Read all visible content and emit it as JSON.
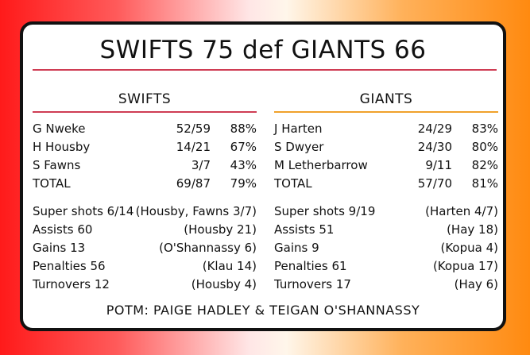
{
  "title": "SWIFTS 75 def GIANTS 66",
  "teams": [
    {
      "name": "SWIFTS",
      "players": [
        {
          "name": "G Nweke",
          "ratio": "52/59",
          "pct": "88%"
        },
        {
          "name": "H Housby",
          "ratio": "14/21",
          "pct": "67%"
        },
        {
          "name": "S Fawns",
          "ratio": "3/7",
          "pct": "43%"
        },
        {
          "name": "TOTAL",
          "ratio": "69/87",
          "pct": "79%"
        }
      ],
      "stats": [
        {
          "label": "Super shots 6/14",
          "detail": "(Housby, Fawns 3/7)"
        },
        {
          "label": "Assists 60",
          "detail": "(Housby 21)"
        },
        {
          "label": "Gains 13",
          "detail": "(O'Shannassy 6)"
        },
        {
          "label": "Penalties 56",
          "detail": "(Klau 14)"
        },
        {
          "label": "Turnovers 12",
          "detail": "(Housby 4)"
        }
      ]
    },
    {
      "name": "GIANTS",
      "players": [
        {
          "name": "J Harten",
          "ratio": "24/29",
          "pct": "83%"
        },
        {
          "name": "S Dwyer",
          "ratio": "24/30",
          "pct": "80%"
        },
        {
          "name": "M Letherbarrow",
          "ratio": "9/11",
          "pct": "82%"
        },
        {
          "name": "TOTAL",
          "ratio": "57/70",
          "pct": "81%"
        }
      ],
      "stats": [
        {
          "label": "Super shots 9/19",
          "detail": "(Harten 4/7)"
        },
        {
          "label": "Assists 51",
          "detail": "(Hay 18)"
        },
        {
          "label": "Gains 9",
          "detail": "(Kopua 4)"
        },
        {
          "label": "Penalties 61",
          "detail": "(Kopua 17)"
        },
        {
          "label": "Turnovers 17",
          "detail": "(Hay 6)"
        }
      ]
    }
  ],
  "potm": "POTM: PAIGE HADLEY & TEIGAN O'SHANNASSY",
  "colors": {
    "swifts_accent": "#cf3d54",
    "giants_accent": "#f0a12b"
  }
}
